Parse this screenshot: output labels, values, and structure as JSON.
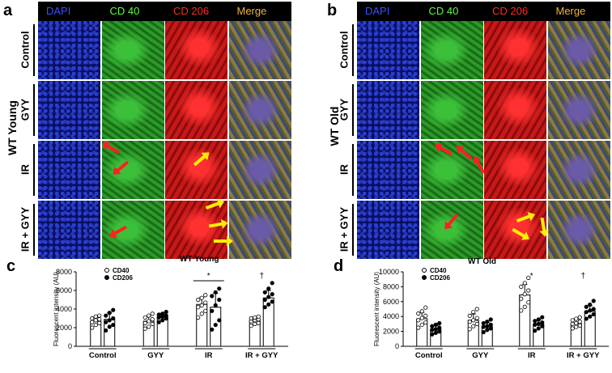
{
  "panels": {
    "a": {
      "letter": "a",
      "group": "WT Young"
    },
    "b": {
      "letter": "b",
      "group": "WT Old"
    },
    "c": {
      "letter": "c"
    },
    "d": {
      "letter": "d"
    }
  },
  "columns": [
    "DAPI",
    "CD 40",
    "CD 206",
    "Merge"
  ],
  "column_colors": [
    "#3a4fff",
    "#5cff3a",
    "#ff2a2a",
    "#f2b43a"
  ],
  "rows": [
    "Control",
    "GYY",
    "IR",
    "IR + GYY"
  ],
  "tile_colors": {
    "DAPI": "#1a2aa8",
    "CD 40": "#2fa52a",
    "CD 206": "#c81414",
    "Merge": "#7a6a3a"
  },
  "chart_data": [
    {
      "type": "bar",
      "title": "WT Young",
      "ylabel": "Fluorescent intensity (AU)",
      "categories": [
        "Control",
        "GYY",
        "IR",
        "IR + GYY"
      ],
      "ylim": [
        0,
        8000
      ],
      "yticks": [
        0,
        2000,
        4000,
        6000,
        8000
      ],
      "series": [
        {
          "name": "CD40",
          "values": [
            2700,
            2700,
            4500,
            2800
          ],
          "points": [
            [
              2000,
              2300,
              2500,
              2600,
              2800,
              2900,
              3000,
              3200,
              3300
            ],
            [
              1900,
              2100,
              2400,
              2500,
              2700,
              2900,
              3100,
              3300,
              3500
            ],
            [
              3100,
              3500,
              3800,
              4200,
              4400,
              4700,
              5000,
              5200,
              5500
            ],
            [
              2200,
              2400,
              2500,
              2700,
              2800,
              2900,
              3000,
              3100,
              3200
            ]
          ]
        },
        {
          "name": "CD206",
          "values": [
            2900,
            3200,
            4200,
            5200
          ],
          "points": [
            [
              1700,
              2100,
              2300,
              2600,
              2800,
              3000,
              3300,
              3600,
              3900
            ],
            [
              2600,
              2800,
              3000,
              3100,
              3200,
              3300,
              3400,
              3500,
              3700
            ],
            [
              1800,
              2300,
              2800,
              3800,
              4400,
              5000,
              5400,
              5800,
              6200
            ],
            [
              4200,
              4500,
              4800,
              5000,
              5300,
              5600,
              5800,
              6200,
              6800
            ]
          ]
        }
      ],
      "annotations": [
        {
          "text": "*",
          "category": "IR"
        },
        {
          "text": "†",
          "category": "IR + GYY"
        }
      ]
    },
    {
      "type": "bar",
      "title": "WT Old",
      "ylabel": "Fluorescent intensity (AU)",
      "categories": [
        "Control",
        "GYY",
        "IR",
        "IR + GYY"
      ],
      "ylim": [
        0,
        10000
      ],
      "yticks": [
        0,
        2000,
        4000,
        6000,
        8000,
        10000
      ],
      "series": [
        {
          "name": "CD40",
          "values": [
            3700,
            3500,
            6900,
            3100
          ],
          "points": [
            [
              2500,
              2900,
              3200,
              3500,
              3800,
              4100,
              4400,
              4700,
              5200
            ],
            [
              2300,
              2700,
              3000,
              3300,
              3500,
              3800,
              4100,
              4600,
              5000
            ],
            [
              4800,
              5300,
              5900,
              6400,
              7000,
              7500,
              8000,
              8500,
              9200
            ],
            [
              2400,
              2600,
              2800,
              3000,
              3100,
              3300,
              3500,
              3700,
              3900
            ]
          ]
        },
        {
          "name": "CD206",
          "values": [
            2300,
            2700,
            3000,
            4700
          ],
          "points": [
            [
              1600,
              1800,
              2000,
              2200,
              2300,
              2500,
              2700,
              2900,
              3100
            ],
            [
              1900,
              2200,
              2400,
              2600,
              2700,
              2900,
              3100,
              3300,
              3600
            ],
            [
              2100,
              2400,
              2700,
              2900,
              3000,
              3200,
              3400,
              3600,
              3900
            ],
            [
              3700,
              4000,
              4300,
              4600,
              4800,
              5000,
              5300,
              5600,
              6100
            ]
          ]
        }
      ],
      "annotations": [
        {
          "text": "*",
          "category": "IR"
        },
        {
          "text": "†",
          "category": "IR + GYY"
        }
      ]
    }
  ]
}
